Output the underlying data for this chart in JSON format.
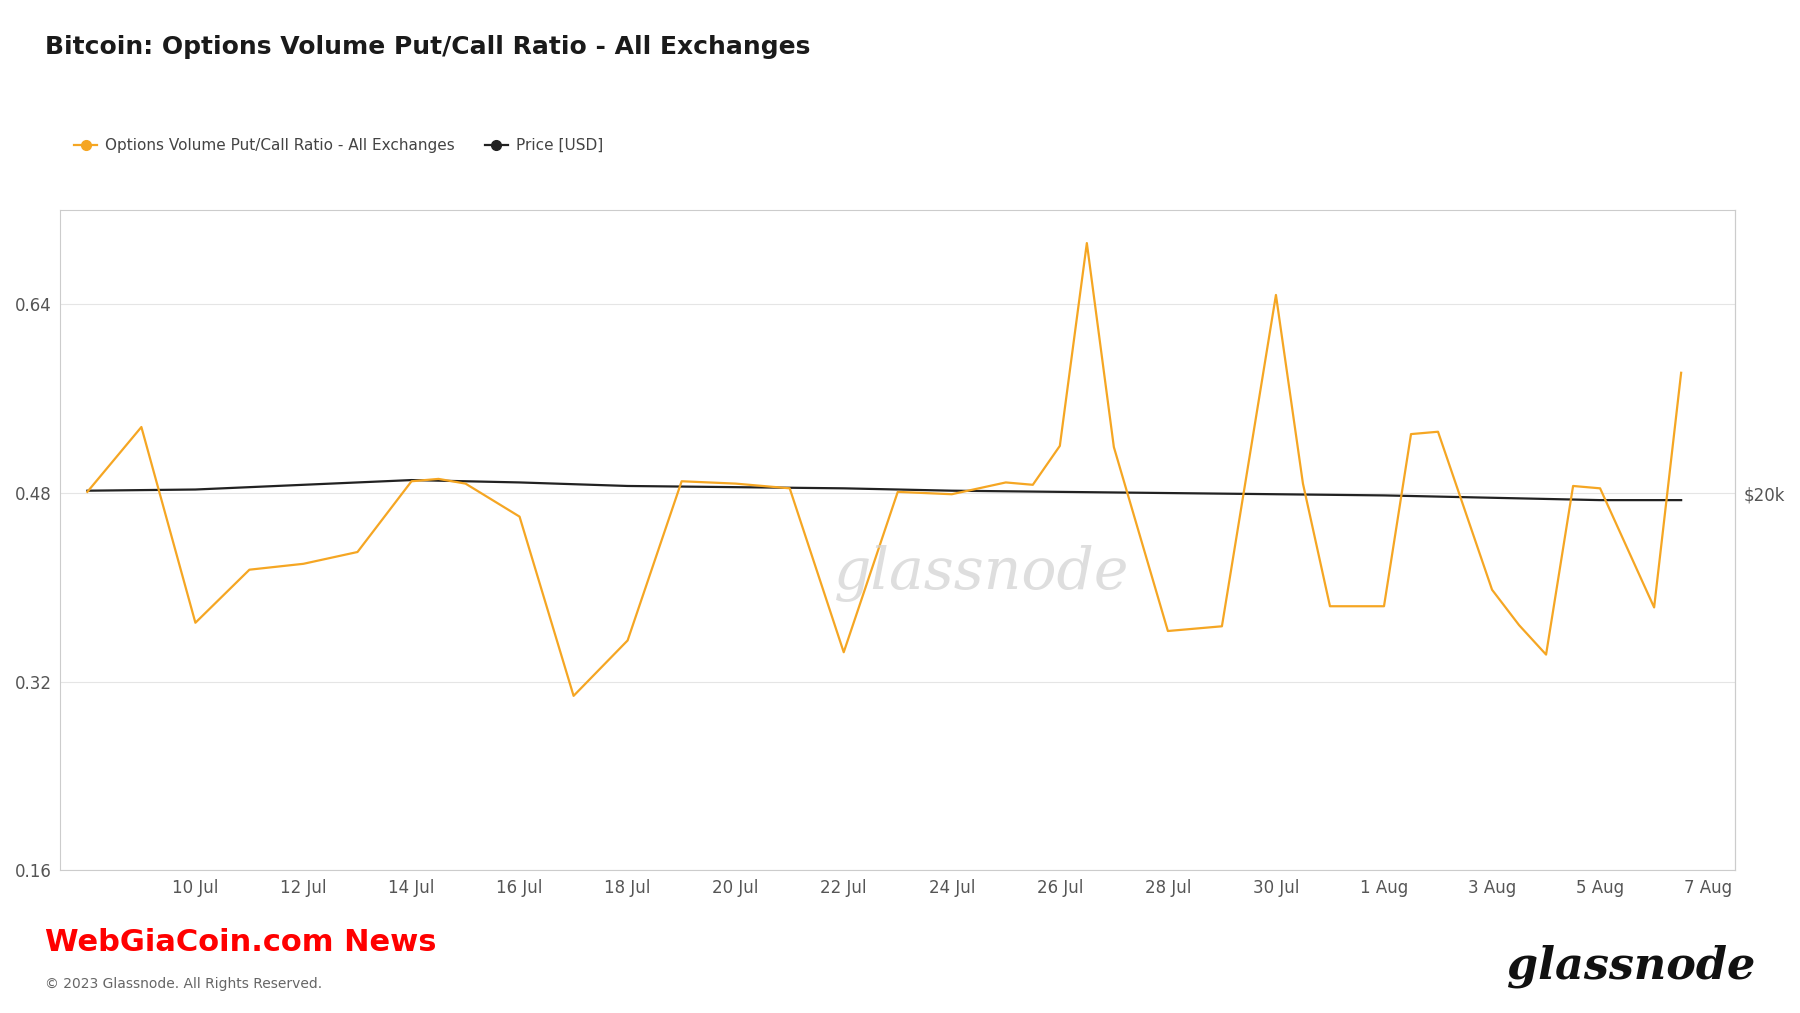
{
  "title": "Bitcoin: Options Volume Put/Call Ratio - All Exchanges",
  "legend_label_orange": "Options Volume Put/Call Ratio - All Exchanges",
  "legend_label_black": "Price [USD]",
  "watermark": "glassnode",
  "footer_left": "WebGiaCoin.com News",
  "footer_copyright": "© 2023 Glassnode. All Rights Reserved.",
  "footer_logo": "glassnode",
  "background_color": "#ffffff",
  "plot_bg_color": "#ffffff",
  "grid_color": "#e5e5e5",
  "orange_color": "#f5a623",
  "black_color": "#222222",
  "ylim_left": [
    0.16,
    0.72
  ],
  "yticks_left": [
    0.16,
    0.32,
    0.48,
    0.64
  ],
  "ytick_right_label": "$20k",
  "xtick_labels": [
    "10 Jul",
    "12 Jul",
    "14 Jul",
    "16 Jul",
    "18 Jul",
    "20 Jul",
    "22 Jul",
    "24 Jul",
    "26 Jul",
    "28 Jul",
    "30 Jul",
    "1 Aug",
    "3 Aug",
    "5 Aug",
    "7 Aug"
  ],
  "pcr_x": [
    0,
    1,
    2,
    3,
    4,
    5,
    6,
    6.5,
    7,
    8,
    9,
    10,
    11,
    12,
    12.5,
    13,
    14,
    15,
    16,
    17,
    17.5,
    18,
    18.5,
    19,
    20,
    21,
    22,
    22.5,
    23,
    24,
    24.5,
    25,
    26,
    26.5,
    27,
    27.5,
    28,
    29,
    29.5
  ],
  "pcr_y": [
    0.481,
    0.536,
    0.37,
    0.415,
    0.42,
    0.43,
    0.49,
    0.492,
    0.488,
    0.46,
    0.308,
    0.355,
    0.49,
    0.488,
    0.486,
    0.484,
    0.345,
    0.481,
    0.479,
    0.489,
    0.487,
    0.52,
    0.692,
    0.519,
    0.363,
    0.367,
    0.648,
    0.488,
    0.384,
    0.384,
    0.53,
    0.532,
    0.398,
    0.368,
    0.343,
    0.486,
    0.484,
    0.383,
    0.582
  ],
  "prc_x": [
    0,
    2,
    4,
    6,
    8,
    10,
    12,
    14,
    16,
    18,
    20,
    22,
    24,
    26,
    28,
    29.5
  ],
  "prc_y": [
    0.482,
    0.483,
    0.487,
    0.491,
    0.489,
    0.486,
    0.485,
    0.484,
    0.482,
    0.481,
    0.48,
    0.479,
    0.478,
    0.476,
    0.474,
    0.474
  ]
}
